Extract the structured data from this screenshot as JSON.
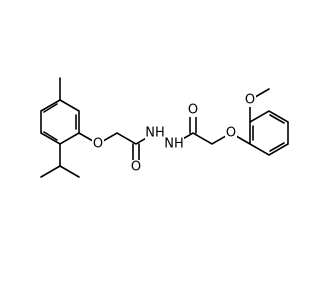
{
  "atoms": [
    "O",
    "O",
    "NH",
    "NH",
    "O",
    "O",
    "O"
  ]
}
